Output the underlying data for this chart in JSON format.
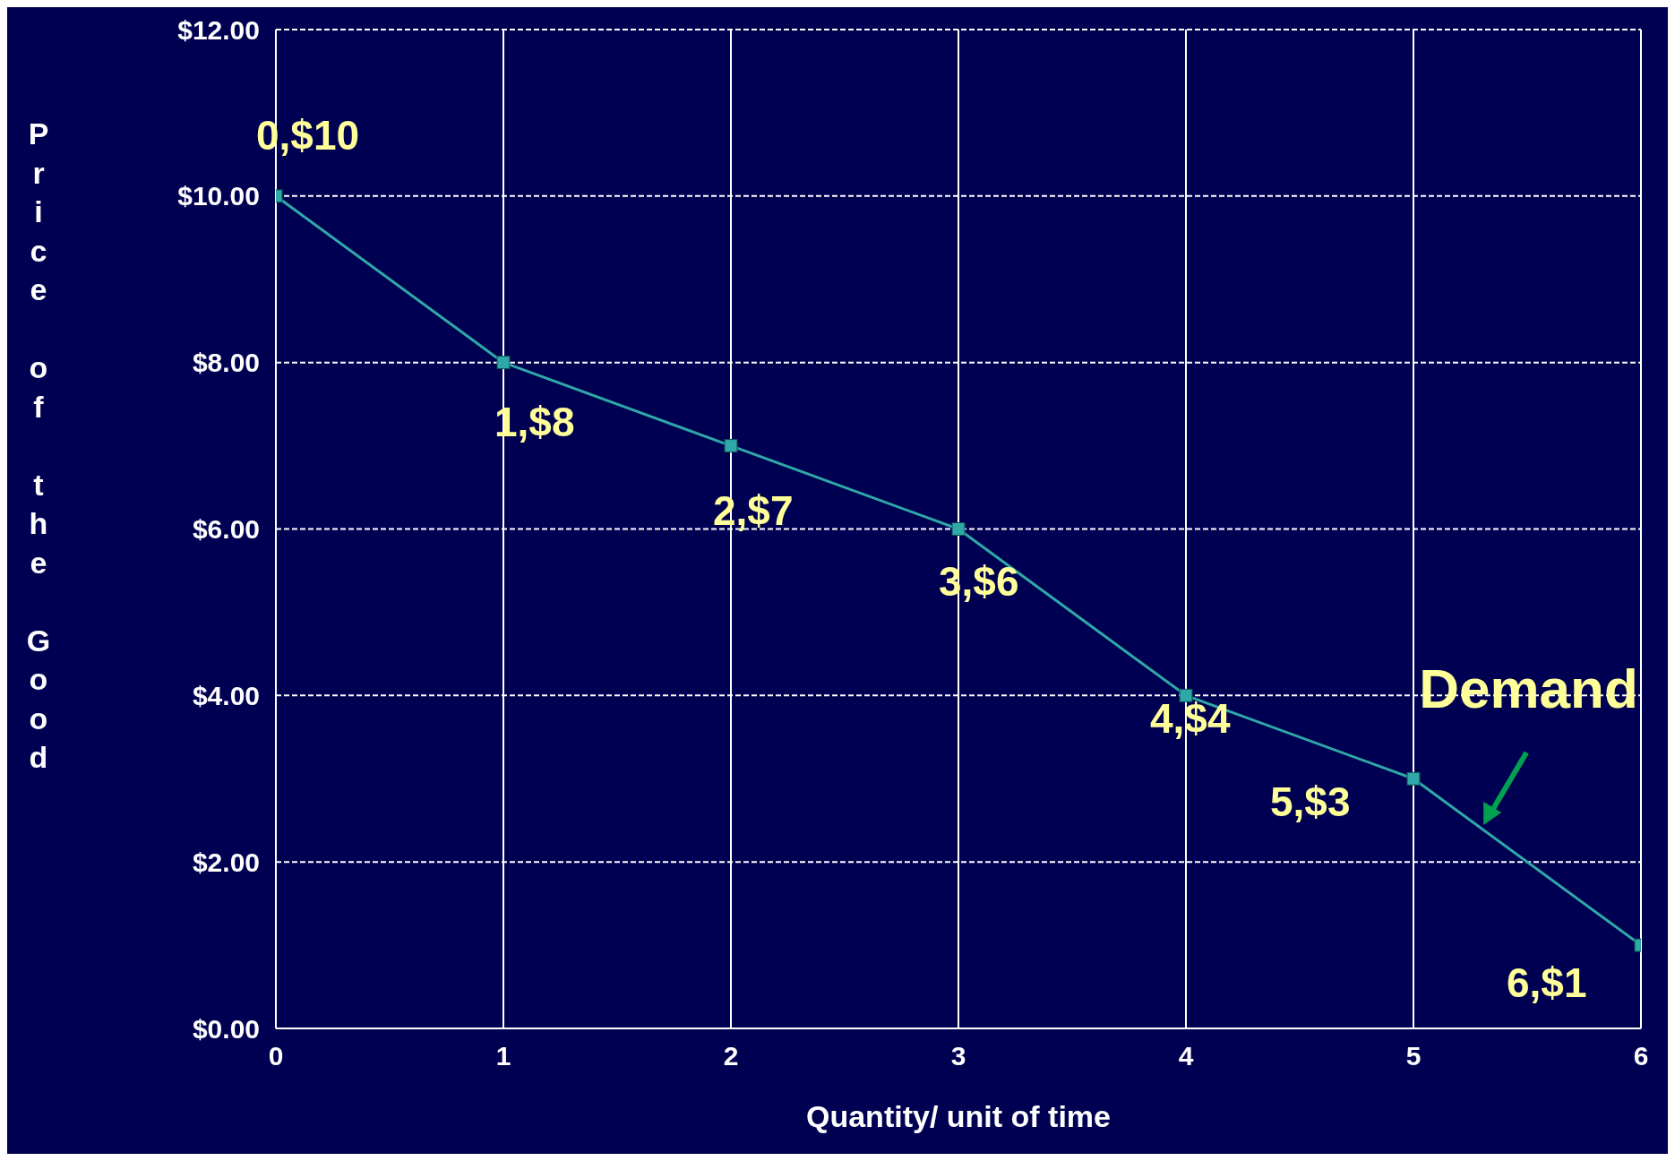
{
  "chart_data": {
    "type": "line",
    "ylabel": "Price of the Good",
    "xlabel": "Quantity/ unit of time",
    "x": [
      0,
      1,
      2,
      3,
      4,
      5,
      6
    ],
    "series": [
      {
        "color": "#2fa8a8",
        "values": [
          10,
          8,
          7,
          6,
          4,
          3,
          1
        ]
      }
    ],
    "xlim": [
      0,
      6
    ],
    "xticks": [
      0,
      1,
      2,
      3,
      4,
      5,
      6
    ],
    "ylim": [
      0,
      12
    ],
    "yticks": [
      {
        "value": 0,
        "label": "$0.00"
      },
      {
        "value": 2,
        "label": "$2.00"
      },
      {
        "value": 4,
        "label": "$4.00"
      },
      {
        "value": 6,
        "label": "$6.00"
      },
      {
        "value": 8,
        "label": "$8.00"
      },
      {
        "value": 10,
        "label": "$10.00"
      },
      {
        "value": 12,
        "label": "$12.00"
      }
    ],
    "grid": true,
    "marker": "square",
    "line_style": "solid",
    "legend": false,
    "annotations": [
      {
        "text": "0,$10",
        "x": 0,
        "y": 10
      },
      {
        "text": "1,$8",
        "x": 1,
        "y": 8
      },
      {
        "text": "2,$7",
        "x": 2,
        "y": 7
      },
      {
        "text": "3,$6",
        "x": 3,
        "y": 6
      },
      {
        "text": "4,$4",
        "x": 4,
        "y": 4
      },
      {
        "text": "5,$3",
        "x": 5,
        "y": 3
      },
      {
        "text": "6,$1",
        "x": 6,
        "y": 1
      },
      {
        "text": "Demand",
        "x": 5.3,
        "y": 2.4
      }
    ]
  }
}
